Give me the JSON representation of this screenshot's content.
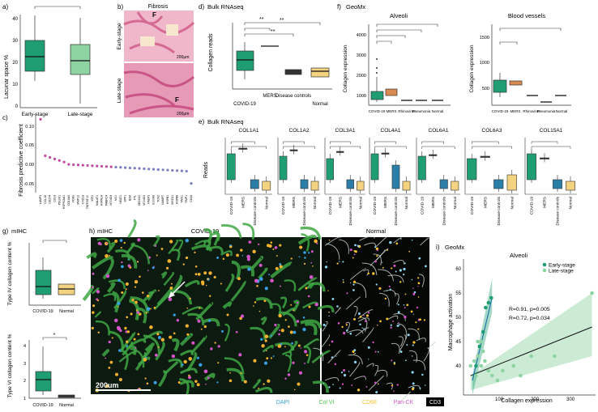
{
  "panel_a": {
    "letter": "a)",
    "ylabel": "Lacunar space %",
    "yticks": [
      "0",
      "10",
      "20",
      "30",
      "40"
    ],
    "cats": [
      "Early-stage",
      "Late-stage"
    ]
  },
  "panel_b": {
    "letter": "b)",
    "title": "Fibrosis",
    "row1": "Early-stage",
    "row2": "Late-stage",
    "scale": "200μm",
    "marker": "F"
  },
  "panel_c": {
    "letter": "c)",
    "ylabel": "Fibrosis predictive coefficient",
    "yticks": [
      "0.10",
      "0.05",
      "0.00",
      "-0.05"
    ],
    "genes": [
      "LAMP3",
      "CCL18",
      "CD274",
      "CCL8",
      "PDLIM1",
      "HSP90AA1",
      "COL6A3",
      "VCAN",
      "MMP12",
      "CXCL8",
      "TNFRSF10",
      "IGF2",
      "MALAT1",
      "HSPA1A",
      "PABPC4",
      "MT-ND4",
      "MX1",
      "NEAT1",
      "SPP1",
      "B2M",
      "FTL",
      "SEC61G",
      "MT-ND3",
      "PAEP3",
      "S100A9",
      "TCN2",
      "NAMPT",
      "HSPB1",
      "MSTO1",
      "HSPB8",
      "NMS1",
      "TIMP1",
      "CD44"
    ]
  },
  "panel_d": {
    "letter": "d)",
    "title": "Bulk RNAseq",
    "ylabel": "Collagen reads",
    "cats": [
      "COVID-19",
      "MERS",
      "Disease controls",
      "Normal"
    ],
    "sig": [
      "**",
      "**",
      "**"
    ]
  },
  "panel_f": {
    "letter": "f)",
    "title": "GeoMx",
    "sub1": "Alveoli",
    "sub2": "Blood vessels",
    "ylabel": "Collagen expression",
    "cats": [
      "COVID-19",
      "MERS",
      "Rhinovirus",
      "Pneumonia",
      "Normal"
    ],
    "yticks1": [
      "1000",
      "2000",
      "3000",
      "4000"
    ],
    "yticks2": [
      "500",
      "1000",
      "1500"
    ]
  },
  "panel_e": {
    "letter": "e)",
    "title": "Bulk RNAseq",
    "ylabel": "Reads",
    "genes": [
      "COL1A1",
      "COL1A2",
      "COL3A1",
      "COL4A1",
      "COL6A1",
      "COL6A3",
      "COL15A1"
    ],
    "cats": [
      "COVID-19",
      "MERS",
      "Disease controls",
      "Normal"
    ]
  },
  "panel_g": {
    "letter": "g)",
    "title": "mIHC",
    "ylabel1": "Type IV collagen content %",
    "ylabel2": "Type VI collagen content %",
    "cats": [
      "COVID-19",
      "Normal"
    ],
    "sig2": "*"
  },
  "panel_h": {
    "letter": "h)",
    "title": "mIHC",
    "sub1": "COVID-19",
    "sub2": "Normal",
    "scale": "200um",
    "legend": [
      {
        "name": "DAPI",
        "color": "#3aa0e6"
      },
      {
        "name": "Col VI",
        "color": "#4bc44b"
      },
      {
        "name": "CD68",
        "color": "#f2c230"
      },
      {
        "name": "Pan-CK",
        "color": "#d455c8"
      },
      {
        "name": "CD3",
        "color": "#ffffff"
      }
    ]
  },
  "panel_i": {
    "letter": "i)",
    "title": "GeoMx",
    "sub": "Alveoli",
    "xlabel": "Collagen expression",
    "ylabel": "Macrophage activation",
    "series": [
      {
        "name": "Early-stage",
        "color": "#1f9e73",
        "stat": "R=0.91, p=0.005"
      },
      {
        "name": "Late-stage",
        "color": "#8ed3a2",
        "stat": "R=0.72, p=0.034"
      }
    ],
    "xticks": [
      "100",
      "200",
      "300"
    ],
    "yticks": [
      "40",
      "45",
      "50",
      "55",
      "60"
    ]
  }
}
